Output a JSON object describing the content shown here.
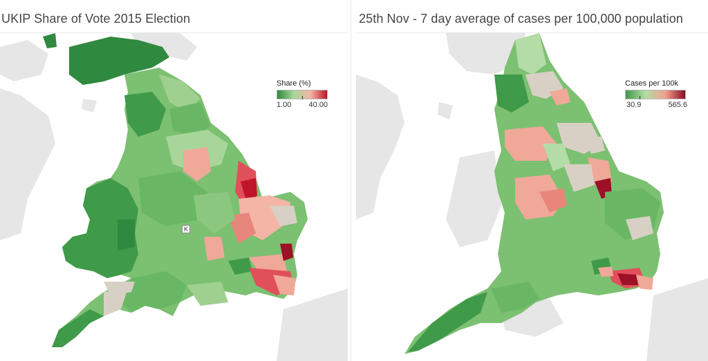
{
  "left_map": {
    "title": "UKIP Share of Vote 2015 Election",
    "legend": {
      "title": "Share (%)",
      "min_label": "1.00",
      "max_label": "40.00",
      "colors": [
        "#2e8b3e",
        "#a8d69a",
        "#f4b5a6",
        "#c0152a"
      ]
    },
    "marker_label": "K"
  },
  "right_map": {
    "title": "25th Nov - 7 day average of cases per 100,000 population",
    "legend": {
      "title": "Cases per 100k",
      "min_label": "30.9",
      "max_label": "565.6",
      "colors": [
        "#3f9a49",
        "#b3dca6",
        "#f1a08f",
        "#8a0d24"
      ]
    }
  },
  "palette": {
    "land_neighbour": "#e6e6e6",
    "sea": "#ffffff",
    "dark_green": "#2f8a3f",
    "mid_green": "#69b765",
    "light_green": "#9fd08f",
    "pale_green": "#c5e3b6",
    "neutral": "#d8d0c4",
    "salmon": "#f0a898",
    "red": "#e0505a",
    "dark_red": "#9c1028"
  }
}
